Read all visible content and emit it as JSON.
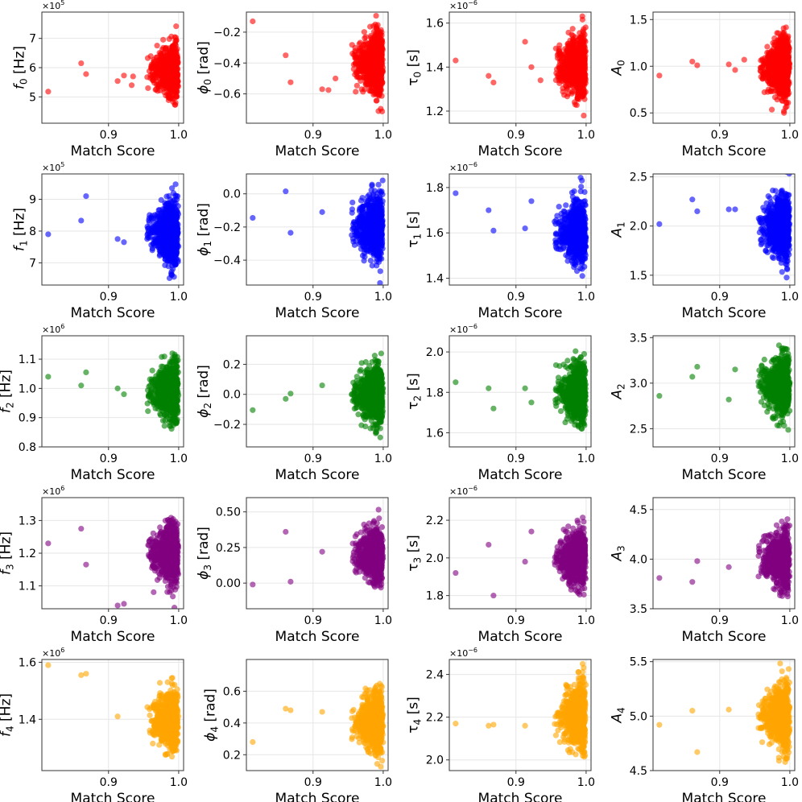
{
  "chart_data": {
    "type": "scatter",
    "layout": "5 rows x 4 columns grid of scatter plots",
    "xlabel": "Match Score",
    "xlim": [
      0.805,
      1.007
    ],
    "xticks": [
      0.9,
      1.0
    ],
    "xtick_labels": [
      "0.9",
      "1.0"
    ],
    "grid": true,
    "point_alpha": 0.6,
    "cloud_x_range": [
      0.955,
      1.0
    ],
    "cloud_n": 800,
    "charts": [
      {
        "row": 0,
        "col": 0,
        "color": "#ff0000",
        "ysym": "f",
        "ysub": "0",
        "yunit": " [Hz]",
        "italic": true,
        "scale": "×10",
        "scale_exp": "5",
        "ylim": [
          4.1,
          7.9
        ],
        "yticks": [
          5,
          6,
          7
        ],
        "ytick_labels": [
          "5",
          "6",
          "7"
        ],
        "outliers": [
          [
            0.814,
            5.18
          ],
          [
            0.861,
            6.15
          ],
          [
            0.868,
            5.78
          ],
          [
            0.913,
            5.54
          ],
          [
            0.922,
            5.73
          ],
          [
            0.933,
            5.4
          ],
          [
            0.935,
            5.7
          ]
        ],
        "cloud_mean": 5.9,
        "cloud_std": 0.45
      },
      {
        "row": 0,
        "col": 1,
        "color": "#ff0000",
        "ysym": "ϕ",
        "ysub": "0",
        "yunit": " [rad]",
        "italic": true,
        "scale": "",
        "scale_exp": "",
        "ylim": [
          -0.79,
          -0.07
        ],
        "yticks": [
          -0.6,
          -0.4,
          -0.2
        ],
        "ytick_labels": [
          "−0.6",
          "−0.4",
          "−0.2"
        ],
        "outliers": [
          [
            0.814,
            -0.13
          ],
          [
            0.861,
            -0.35
          ],
          [
            0.868,
            -0.525
          ],
          [
            0.913,
            -0.57
          ],
          [
            0.922,
            -0.575
          ],
          [
            0.932,
            -0.5
          ]
        ],
        "cloud_mean": -0.4,
        "cloud_std": 0.11
      },
      {
        "row": 0,
        "col": 2,
        "color": "#ff0000",
        "ysym": "τ",
        "ysub": "0",
        "yunit": " [s]",
        "italic": false,
        "scale": "×10",
        "scale_exp": "−6",
        "ylim": [
          1.145,
          1.65
        ],
        "yticks": [
          1.2,
          1.4,
          1.6
        ],
        "ytick_labels": [
          "1.2",
          "1.4",
          "1.6"
        ],
        "outliers": [
          [
            0.814,
            1.43
          ],
          [
            0.861,
            1.36
          ],
          [
            0.868,
            1.33
          ],
          [
            0.913,
            1.515
          ],
          [
            0.922,
            1.4
          ],
          [
            0.935,
            1.34
          ]
        ],
        "cloud_mean": 1.4,
        "cloud_std": 0.075
      },
      {
        "row": 0,
        "col": 3,
        "color": "#ff0000",
        "ysym": "A",
        "ysub": "0",
        "yunit": "",
        "italic": true,
        "scale": "",
        "scale_exp": "",
        "ylim": [
          0.39,
          1.58
        ],
        "yticks": [
          0.5,
          1.0,
          1.5
        ],
        "ytick_labels": [
          "0.5",
          "1.0",
          "1.5"
        ],
        "outliers": [
          [
            0.814,
            0.9
          ],
          [
            0.861,
            1.05
          ],
          [
            0.868,
            1.01
          ],
          [
            0.913,
            1.02
          ],
          [
            0.922,
            0.96
          ],
          [
            0.935,
            1.07
          ]
        ],
        "cloud_mean": 0.98,
        "cloud_std": 0.17
      },
      {
        "row": 1,
        "col": 0,
        "color": "#0000ff",
        "ysym": "f",
        "ysub": "1",
        "yunit": " [Hz]",
        "italic": true,
        "scale": "×10",
        "scale_exp": "5",
        "ylim": [
          6.3,
          9.8
        ],
        "yticks": [
          7,
          8,
          9
        ],
        "ytick_labels": [
          "7",
          "8",
          "9"
        ],
        "outliers": [
          [
            0.814,
            7.9
          ],
          [
            0.861,
            8.33
          ],
          [
            0.868,
            9.1
          ],
          [
            0.913,
            7.75
          ],
          [
            0.922,
            7.65
          ]
        ],
        "cloud_mean": 8.0,
        "cloud_std": 0.55
      },
      {
        "row": 1,
        "col": 1,
        "color": "#0000ff",
        "ysym": "ϕ",
        "ysub": "1",
        "yunit": " [rad]",
        "italic": true,
        "scale": "",
        "scale_exp": "",
        "ylim": [
          -0.55,
          0.12
        ],
        "yticks": [
          -0.4,
          -0.2,
          0.0
        ],
        "ytick_labels": [
          "−0.4",
          "−0.2",
          "0.0"
        ],
        "outliers": [
          [
            0.814,
            -0.145
          ],
          [
            0.861,
            0.015
          ],
          [
            0.868,
            -0.235
          ],
          [
            0.913,
            -0.11
          ]
        ],
        "cloud_mean": -0.2,
        "cloud_std": 0.1
      },
      {
        "row": 1,
        "col": 2,
        "color": "#0000ff",
        "ysym": "τ",
        "ysub": "1",
        "yunit": " [s]",
        "italic": false,
        "scale": "×10",
        "scale_exp": "−6",
        "ylim": [
          1.37,
          1.86
        ],
        "yticks": [
          1.4,
          1.6,
          1.8
        ],
        "ytick_labels": [
          "1.4",
          "1.6",
          "1.8"
        ],
        "outliers": [
          [
            0.814,
            1.775
          ],
          [
            0.861,
            1.7
          ],
          [
            0.868,
            1.61
          ],
          [
            0.913,
            1.62
          ],
          [
            0.922,
            1.74
          ]
        ],
        "cloud_mean": 1.6,
        "cloud_std": 0.07
      },
      {
        "row": 1,
        "col": 3,
        "color": "#0000ff",
        "ysym": "A",
        "ysub": "1",
        "yunit": "",
        "italic": true,
        "scale": "",
        "scale_exp": "",
        "ylim": [
          1.4,
          2.53
        ],
        "yticks": [
          1.5,
          2.0,
          2.5
        ],
        "ytick_labels": [
          "1.5",
          "2.0",
          "2.5"
        ],
        "outliers": [
          [
            0.814,
            2.02
          ],
          [
            0.861,
            2.27
          ],
          [
            0.868,
            2.15
          ],
          [
            0.913,
            2.17
          ],
          [
            0.922,
            2.17
          ]
        ],
        "cloud_mean": 2.0,
        "cloud_std": 0.17
      },
      {
        "row": 2,
        "col": 0,
        "color": "#008000",
        "ysym": "f",
        "ysub": "2",
        "yunit": " [Hz]",
        "italic": true,
        "scale": "×10",
        "scale_exp": "6",
        "ylim": [
          0.8,
          1.18
        ],
        "yticks": [
          0.8,
          0.9,
          1.0,
          1.1
        ],
        "ytick_labels": [
          "0.8",
          "0.9",
          "1.0",
          "1.1"
        ],
        "outliers": [
          [
            0.814,
            1.04
          ],
          [
            0.861,
            1.01
          ],
          [
            0.868,
            1.055
          ],
          [
            0.913,
            1.0
          ],
          [
            0.922,
            0.98
          ]
        ],
        "cloud_mean": 0.99,
        "cloud_std": 0.055
      },
      {
        "row": 2,
        "col": 1,
        "color": "#008000",
        "ysym": "ϕ",
        "ysub": "2",
        "yunit": " [rad]",
        "italic": true,
        "scale": "",
        "scale_exp": "",
        "ylim": [
          -0.35,
          0.39
        ],
        "yticks": [
          -0.2,
          0.0,
          0.2
        ],
        "ytick_labels": [
          "−0.2",
          "0.0",
          "0.2"
        ],
        "outliers": [
          [
            0.814,
            -0.105
          ],
          [
            0.861,
            -0.03
          ],
          [
            0.868,
            0.005
          ],
          [
            0.913,
            0.06
          ]
        ],
        "cloud_mean": 0.0,
        "cloud_std": 0.1
      },
      {
        "row": 2,
        "col": 2,
        "color": "#008000",
        "ysym": "τ",
        "ysub": "2",
        "yunit": " [s]",
        "italic": false,
        "scale": "×10",
        "scale_exp": "−6",
        "ylim": [
          1.53,
          2.08
        ],
        "yticks": [
          1.6,
          1.8,
          2.0
        ],
        "ytick_labels": [
          "1.6",
          "1.8",
          "2.0"
        ],
        "outliers": [
          [
            0.814,
            1.85
          ],
          [
            0.861,
            1.82
          ],
          [
            0.868,
            1.72
          ],
          [
            0.913,
            1.82
          ],
          [
            0.922,
            1.75
          ]
        ],
        "cloud_mean": 1.8,
        "cloud_std": 0.08
      },
      {
        "row": 2,
        "col": 3,
        "color": "#008000",
        "ysym": "A",
        "ysub": "2",
        "yunit": "",
        "italic": true,
        "scale": "",
        "scale_exp": "",
        "ylim": [
          2.3,
          3.52
        ],
        "yticks": [
          2.5,
          3.0,
          3.5
        ],
        "ytick_labels": [
          "2.5",
          "3.0",
          "3.5"
        ],
        "outliers": [
          [
            0.814,
            2.86
          ],
          [
            0.861,
            3.07
          ],
          [
            0.868,
            3.18
          ],
          [
            0.913,
            2.82
          ],
          [
            0.922,
            3.15
          ]
        ],
        "cloud_mean": 2.97,
        "cloud_std": 0.17
      },
      {
        "row": 3,
        "col": 0,
        "color": "#800080",
        "ysym": "f",
        "ysub": "3",
        "yunit": " [Hz]",
        "italic": true,
        "scale": "×10",
        "scale_exp": "6",
        "ylim": [
          1.03,
          1.37
        ],
        "yticks": [
          1.1,
          1.2,
          1.3
        ],
        "ytick_labels": [
          "1.1",
          "1.2",
          "1.3"
        ],
        "outliers": [
          [
            0.814,
            1.23
          ],
          [
            0.861,
            1.275
          ],
          [
            0.868,
            1.165
          ],
          [
            0.913,
            1.04
          ],
          [
            0.922,
            1.045
          ]
        ],
        "cloud_mean": 1.2,
        "cloud_std": 0.05
      },
      {
        "row": 3,
        "col": 1,
        "color": "#800080",
        "ysym": "ϕ",
        "ysub": "3",
        "yunit": " [rad]",
        "italic": true,
        "scale": "",
        "scale_exp": "",
        "ylim": [
          -0.18,
          0.6
        ],
        "yticks": [
          0.0,
          0.25,
          0.5
        ],
        "ytick_labels": [
          "0.00",
          "0.25",
          "0.50"
        ],
        "outliers": [
          [
            0.814,
            -0.01
          ],
          [
            0.861,
            0.36
          ],
          [
            0.868,
            0.01
          ],
          [
            0.913,
            0.22
          ]
        ],
        "cloud_mean": 0.2,
        "cloud_std": 0.1
      },
      {
        "row": 3,
        "col": 2,
        "color": "#800080",
        "ysym": "τ",
        "ysub": "3",
        "yunit": " [s]",
        "italic": false,
        "scale": "×10",
        "scale_exp": "−6",
        "ylim": [
          1.73,
          2.32
        ],
        "yticks": [
          1.8,
          2.0,
          2.2
        ],
        "ytick_labels": [
          "1.8",
          "2.0",
          "2.2"
        ],
        "outliers": [
          [
            0.814,
            1.92
          ],
          [
            0.861,
            2.07
          ],
          [
            0.868,
            1.8
          ],
          [
            0.913,
            1.98
          ],
          [
            0.922,
            2.14
          ]
        ],
        "cloud_mean": 2.0,
        "cloud_std": 0.08
      },
      {
        "row": 3,
        "col": 3,
        "color": "#800080",
        "ysym": "A",
        "ysub": "3",
        "yunit": "",
        "italic": true,
        "scale": "",
        "scale_exp": "",
        "ylim": [
          3.5,
          4.62
        ],
        "yticks": [
          3.5,
          4.0,
          4.5
        ],
        "ytick_labels": [
          "3.5",
          "4.0",
          "4.5"
        ],
        "outliers": [
          [
            0.814,
            3.81
          ],
          [
            0.861,
            3.77
          ],
          [
            0.868,
            3.98
          ],
          [
            0.913,
            3.92
          ]
        ],
        "cloud_mean": 4.0,
        "cloud_std": 0.15
      },
      {
        "row": 4,
        "col": 0,
        "color": "#ffa500",
        "ysym": "f",
        "ysub": "4",
        "yunit": " [Hz]",
        "italic": true,
        "scale": "×10",
        "scale_exp": "6",
        "ylim": [
          1.22,
          1.61
        ],
        "yticks": [
          1.4,
          1.6
        ],
        "ytick_labels": [
          "1.4",
          "1.6"
        ],
        "outliers": [
          [
            0.814,
            1.59
          ],
          [
            0.861,
            1.555
          ],
          [
            0.868,
            1.56
          ],
          [
            0.913,
            1.41
          ]
        ],
        "cloud_mean": 1.4,
        "cloud_std": 0.055
      },
      {
        "row": 4,
        "col": 1,
        "color": "#ffa500",
        "ysym": "ϕ",
        "ysub": "4",
        "yunit": " [rad]",
        "italic": true,
        "scale": "",
        "scale_exp": "",
        "ylim": [
          0.1,
          0.8
        ],
        "yticks": [
          0.2,
          0.4,
          0.6
        ],
        "ytick_labels": [
          "0.2",
          "0.4",
          "0.6"
        ],
        "outliers": [
          [
            0.814,
            0.28
          ],
          [
            0.861,
            0.49
          ],
          [
            0.868,
            0.48
          ],
          [
            0.913,
            0.47
          ]
        ],
        "cloud_mean": 0.4,
        "cloud_std": 0.1
      },
      {
        "row": 4,
        "col": 2,
        "color": "#ffa500",
        "ysym": "τ",
        "ysub": "4",
        "yunit": " [s]",
        "italic": false,
        "scale": "×10",
        "scale_exp": "−6",
        "ylim": [
          1.95,
          2.47
        ],
        "yticks": [
          2.0,
          2.2,
          2.4
        ],
        "ytick_labels": [
          "2.0",
          "2.2",
          "2.4"
        ],
        "outliers": [
          [
            0.814,
            2.17
          ],
          [
            0.861,
            2.16
          ],
          [
            0.868,
            2.165
          ],
          [
            0.913,
            2.16
          ]
        ],
        "cloud_mean": 2.2,
        "cloud_std": 0.08
      },
      {
        "row": 4,
        "col": 3,
        "color": "#ffa500",
        "ysym": "A",
        "ysub": "4",
        "yunit": "",
        "italic": true,
        "scale": "",
        "scale_exp": "",
        "ylim": [
          4.5,
          5.52
        ],
        "yticks": [
          4.5,
          5.0,
          5.5
        ],
        "ytick_labels": [
          "4.5",
          "5.0",
          "5.5"
        ],
        "outliers": [
          [
            0.814,
            4.92
          ],
          [
            0.861,
            5.05
          ],
          [
            0.868,
            4.67
          ],
          [
            0.913,
            5.06
          ]
        ],
        "cloud_mean": 5.0,
        "cloud_std": 0.15
      }
    ]
  }
}
